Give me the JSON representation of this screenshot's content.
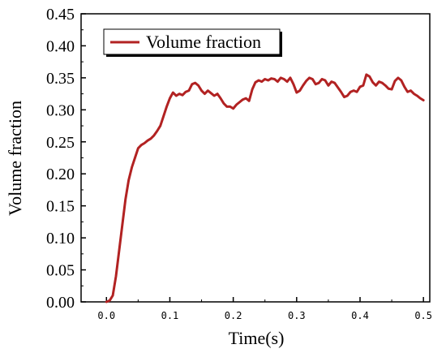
{
  "chart_data": {
    "type": "line",
    "title": "",
    "xlabel": "Time(s)",
    "ylabel": "Volume fraction",
    "xlim": [
      -0.04,
      0.51
    ],
    "ylim": [
      0.0,
      0.45
    ],
    "x_ticks": [
      0.0,
      0.1,
      0.2,
      0.3,
      0.4,
      0.5
    ],
    "x_tick_labels": [
      "0.0",
      "0.1",
      "0.2",
      "0.3",
      "0.4",
      "0.5"
    ],
    "y_ticks": [
      0.0,
      0.05,
      0.1,
      0.15,
      0.2,
      0.25,
      0.3,
      0.35,
      0.4,
      0.45
    ],
    "y_tick_labels": [
      "0.00",
      "0.05",
      "0.10",
      "0.15",
      "0.20",
      "0.25",
      "0.30",
      "0.35",
      "0.40",
      "0.45"
    ],
    "grid": false,
    "legend_position": "top-left",
    "series": [
      {
        "name": "Volume fraction",
        "color": "#b22222",
        "x": [
          0.0,
          0.005,
          0.01,
          0.015,
          0.02,
          0.025,
          0.03,
          0.035,
          0.04,
          0.045,
          0.05,
          0.055,
          0.06,
          0.065,
          0.07,
          0.075,
          0.08,
          0.085,
          0.09,
          0.095,
          0.1,
          0.105,
          0.11,
          0.115,
          0.12,
          0.125,
          0.13,
          0.135,
          0.14,
          0.145,
          0.15,
          0.155,
          0.16,
          0.165,
          0.17,
          0.175,
          0.18,
          0.185,
          0.19,
          0.195,
          0.2,
          0.205,
          0.21,
          0.215,
          0.22,
          0.225,
          0.23,
          0.235,
          0.24,
          0.245,
          0.25,
          0.255,
          0.26,
          0.265,
          0.27,
          0.275,
          0.28,
          0.285,
          0.29,
          0.295,
          0.3,
          0.305,
          0.31,
          0.315,
          0.32,
          0.325,
          0.33,
          0.335,
          0.34,
          0.345,
          0.35,
          0.355,
          0.36,
          0.365,
          0.37,
          0.375,
          0.38,
          0.385,
          0.39,
          0.395,
          0.4,
          0.405,
          0.41,
          0.415,
          0.42,
          0.425,
          0.43,
          0.435,
          0.44,
          0.445,
          0.45,
          0.455,
          0.46,
          0.465,
          0.47,
          0.475,
          0.48,
          0.485,
          0.49,
          0.495,
          0.5
        ],
        "y": [
          0.0,
          0.002,
          0.01,
          0.04,
          0.08,
          0.12,
          0.16,
          0.19,
          0.21,
          0.225,
          0.24,
          0.245,
          0.248,
          0.252,
          0.255,
          0.26,
          0.267,
          0.275,
          0.29,
          0.305,
          0.318,
          0.327,
          0.322,
          0.325,
          0.323,
          0.328,
          0.33,
          0.34,
          0.342,
          0.338,
          0.33,
          0.325,
          0.33,
          0.326,
          0.322,
          0.325,
          0.318,
          0.31,
          0.305,
          0.305,
          0.302,
          0.308,
          0.312,
          0.316,
          0.318,
          0.314,
          0.332,
          0.343,
          0.346,
          0.344,
          0.348,
          0.346,
          0.349,
          0.348,
          0.344,
          0.35,
          0.348,
          0.344,
          0.35,
          0.34,
          0.327,
          0.33,
          0.338,
          0.345,
          0.35,
          0.348,
          0.34,
          0.342,
          0.348,
          0.346,
          0.338,
          0.344,
          0.342,
          0.335,
          0.328,
          0.32,
          0.322,
          0.328,
          0.33,
          0.328,
          0.336,
          0.338,
          0.355,
          0.352,
          0.343,
          0.338,
          0.344,
          0.342,
          0.338,
          0.333,
          0.332,
          0.345,
          0.35,
          0.346,
          0.336,
          0.328,
          0.33,
          0.325,
          0.322,
          0.318,
          0.315
        ]
      }
    ]
  }
}
